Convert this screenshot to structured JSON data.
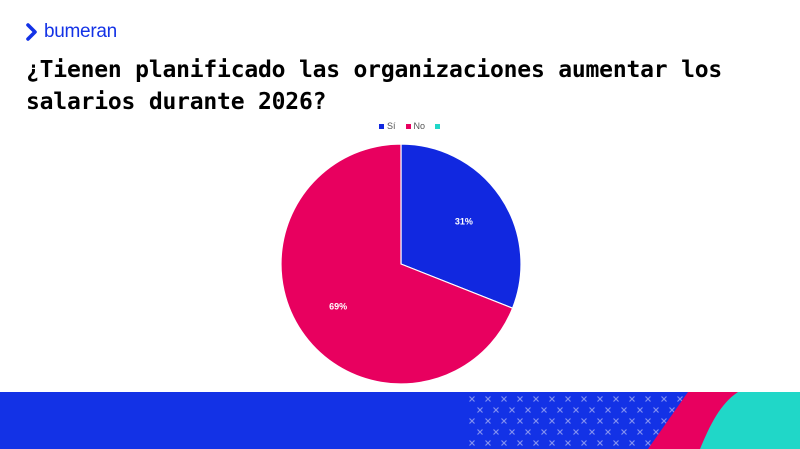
{
  "brand": {
    "name": "bumeran",
    "color": "#1332e6"
  },
  "title": "¿Tienen planificado las organizaciones aumentar los salarios durante 2026?",
  "chart_data": {
    "type": "pie",
    "title": "",
    "categories": [
      "Sí",
      "No",
      ""
    ],
    "values": [
      31,
      69,
      0
    ],
    "value_labels": [
      "31%",
      "69%",
      ""
    ],
    "colors": [
      "#1128e0",
      "#e8005f",
      "#20d7c8"
    ],
    "legend_position": "top"
  },
  "footer": {
    "colors": {
      "blue": "#1332e6",
      "pink": "#e8005f",
      "teal": "#20d7c8",
      "pattern": "#8190f0"
    }
  }
}
